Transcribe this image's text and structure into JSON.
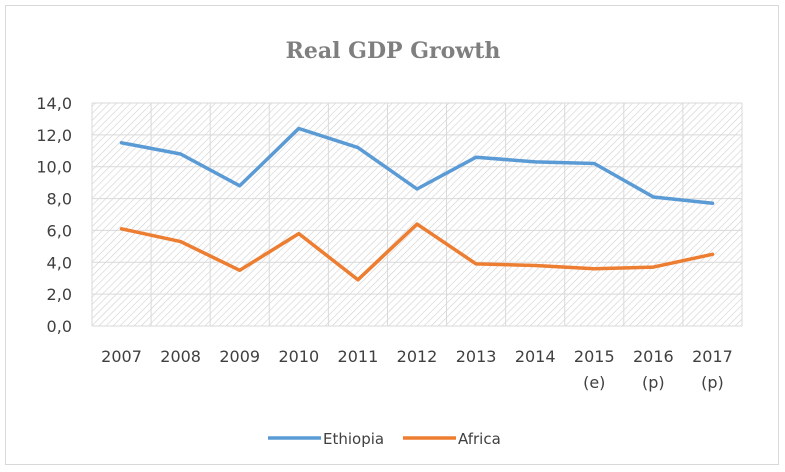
{
  "chart_data": {
    "type": "line",
    "title": "Real GDP Growth",
    "xlabel": "",
    "ylabel": "",
    "categories": [
      [
        "2007"
      ],
      [
        "2008"
      ],
      [
        "2009"
      ],
      [
        "2010"
      ],
      [
        "2011"
      ],
      [
        "2012"
      ],
      [
        "2013"
      ],
      [
        "2014"
      ],
      [
        "2015",
        "(e)"
      ],
      [
        "2016",
        "(p)"
      ],
      [
        "2017",
        "(p)"
      ]
    ],
    "ylim": [
      0,
      14
    ],
    "yticks": [
      "0,0",
      "2,0",
      "4,0",
      "6,0",
      "8,0",
      "10,0",
      "12,0",
      "14,0"
    ],
    "grid": true,
    "legend_position": "bottom",
    "series": [
      {
        "name": "Ethiopia",
        "color": "#5b9bd5",
        "values": [
          11.5,
          10.8,
          8.8,
          12.4,
          11.2,
          8.6,
          10.6,
          10.3,
          10.2,
          8.1,
          7.7
        ]
      },
      {
        "name": "Africa",
        "color": "#ed7d31",
        "values": [
          6.1,
          5.3,
          3.5,
          5.8,
          2.9,
          6.4,
          3.9,
          3.8,
          3.6,
          3.7,
          4.5
        ]
      }
    ]
  }
}
